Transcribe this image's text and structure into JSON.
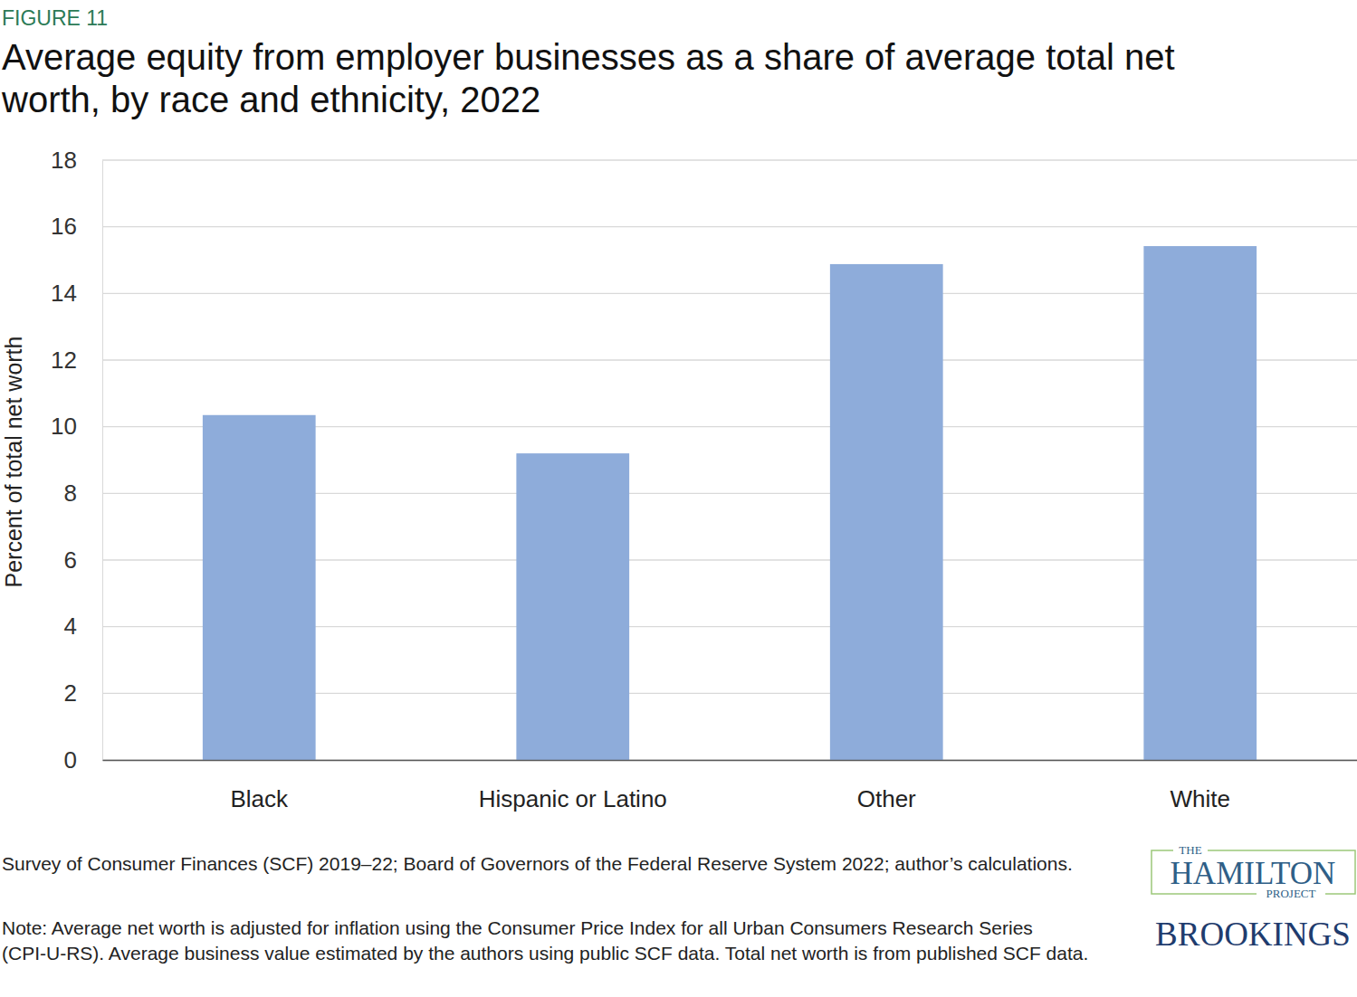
{
  "chart_data": {
    "type": "bar",
    "figure_label": "FIGURE 11",
    "title": "Average equity from employer businesses as a share of average total net worth, by race and ethnicity, 2022",
    "y_label": "Percent  of total net worth",
    "categories": [
      "Black",
      "Hispanic or Latino",
      "Other",
      "White"
    ],
    "values": [
      10.35,
      9.2,
      14.88,
      15.42
    ],
    "color": "#8eacda",
    "ylim": [
      0,
      18
    ],
    "yticks": [
      0,
      2,
      4,
      6,
      8,
      10,
      12,
      14,
      16,
      18
    ],
    "grid": true,
    "source": "Survey of Consumer Finances (SCF) 2019–22; Board of Governors of the Federal Reserve System 2022; author’s calculations.",
    "note": "Note: Average net worth is adjusted for inflation using the Consumer Price Index for all Urban Consumers Research Series (CPI-U-RS). Average business value estimated by the authors using public SCF data. Total net worth is from published SCF data.",
    "logo_hamilton": [
      "THE",
      "HAMILTON",
      "PROJECT"
    ],
    "logo_brookings": "BROOKINGS"
  }
}
